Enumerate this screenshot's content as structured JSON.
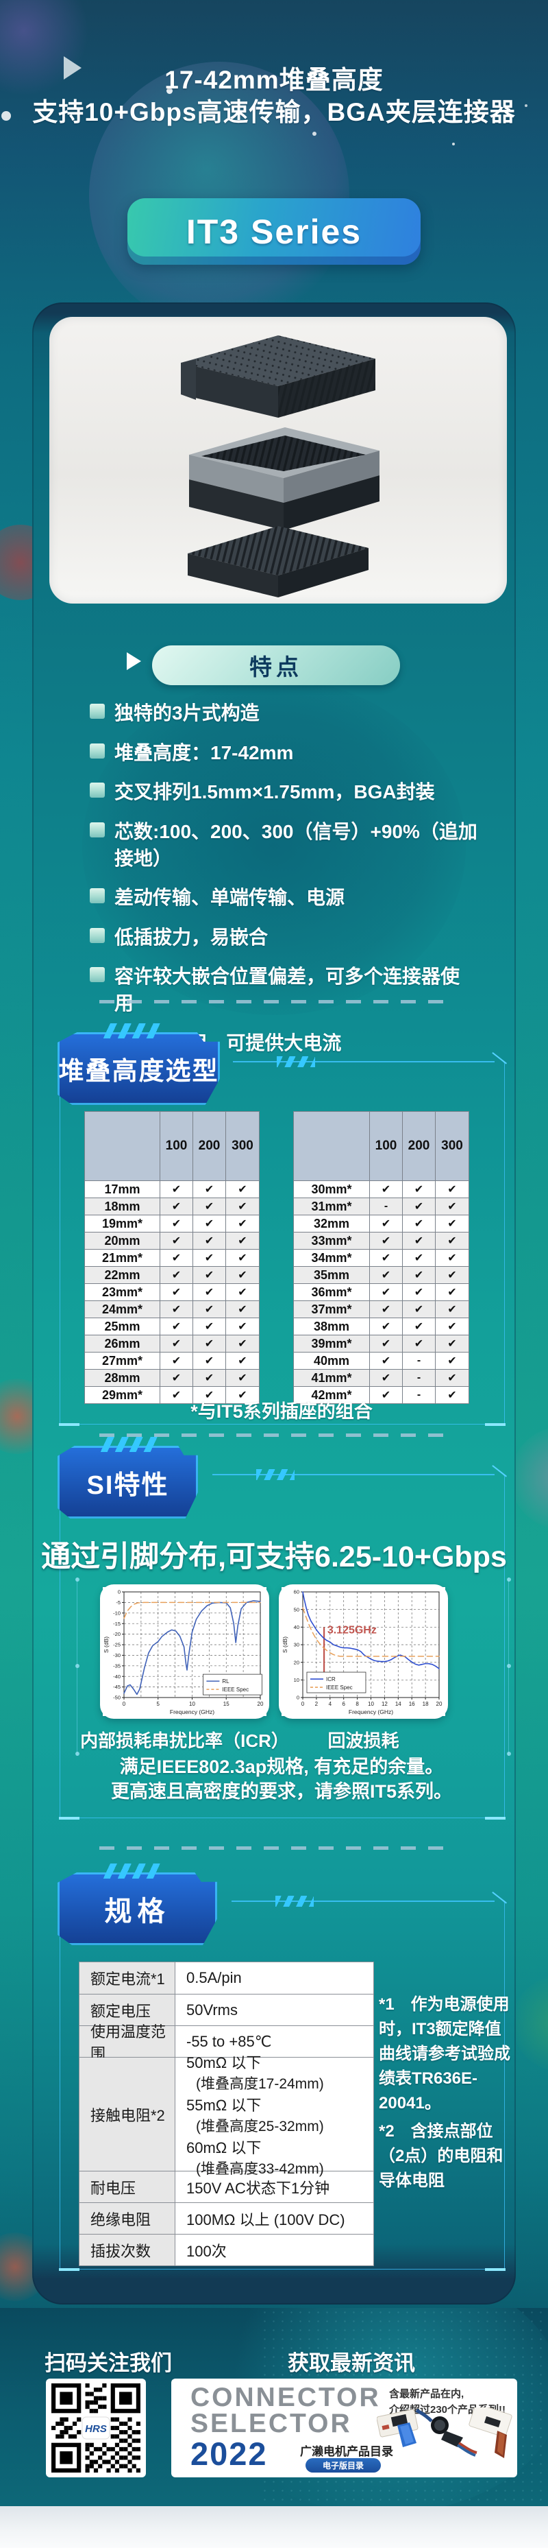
{
  "header": {
    "title_line1": "17-42mm堆叠高度",
    "title_line2": "支持10+Gbps高速传输，BGA夹层连接器",
    "series_badge": "IT3 Series"
  },
  "features": {
    "badge": "特点",
    "items": [
      "独特的3片式构造",
      "堆叠高度：17-42mm",
      "交叉排列1.5mm×1.75mm，BGA封装",
      "芯数:100、200、300（信号）+90%（追加接地）",
      "差动传输、单端传输、电源",
      "低插拔力，易嵌合",
      "容许较大嵌合位置偏差，可多个连接器使用",
      "与IT-P并用，可提供大电流"
    ]
  },
  "stack_height": {
    "badge": "堆叠高度选型",
    "col_headers": [
      "100",
      "200",
      "300"
    ],
    "left_rows": [
      {
        "label": "17mm",
        "cells": [
          "✔",
          "✔",
          "✔"
        ]
      },
      {
        "label": "18mm",
        "cells": [
          "✔",
          "✔",
          "✔"
        ]
      },
      {
        "label": "19mm*",
        "cells": [
          "✔",
          "✔",
          "✔"
        ]
      },
      {
        "label": "20mm",
        "cells": [
          "✔",
          "✔",
          "✔"
        ]
      },
      {
        "label": "21mm*",
        "cells": [
          "✔",
          "✔",
          "✔"
        ]
      },
      {
        "label": "22mm",
        "cells": [
          "✔",
          "✔",
          "✔"
        ]
      },
      {
        "label": "23mm*",
        "cells": [
          "✔",
          "✔",
          "✔"
        ]
      },
      {
        "label": "24mm*",
        "cells": [
          "✔",
          "✔",
          "✔"
        ]
      },
      {
        "label": "25mm",
        "cells": [
          "✔",
          "✔",
          "✔"
        ]
      },
      {
        "label": "26mm",
        "cells": [
          "✔",
          "✔",
          "✔"
        ]
      },
      {
        "label": "27mm*",
        "cells": [
          "✔",
          "✔",
          "✔"
        ]
      },
      {
        "label": "28mm",
        "cells": [
          "✔",
          "✔",
          "✔"
        ]
      },
      {
        "label": "29mm*",
        "cells": [
          "✔",
          "✔",
          "✔"
        ]
      }
    ],
    "right_rows": [
      {
        "label": "30mm*",
        "cells": [
          "✔",
          "✔",
          "✔"
        ]
      },
      {
        "label": "31mm*",
        "cells": [
          "-",
          "✔",
          "✔"
        ]
      },
      {
        "label": "32mm",
        "cells": [
          "✔",
          "✔",
          "✔"
        ]
      },
      {
        "label": "33mm*",
        "cells": [
          "✔",
          "✔",
          "✔"
        ]
      },
      {
        "label": "34mm*",
        "cells": [
          "✔",
          "✔",
          "✔"
        ]
      },
      {
        "label": "35mm",
        "cells": [
          "✔",
          "✔",
          "✔"
        ]
      },
      {
        "label": "36mm*",
        "cells": [
          "✔",
          "✔",
          "✔"
        ]
      },
      {
        "label": "37mm*",
        "cells": [
          "✔",
          "✔",
          "✔"
        ]
      },
      {
        "label": "38mm",
        "cells": [
          "✔",
          "✔",
          "✔"
        ]
      },
      {
        "label": "39mm*",
        "cells": [
          "✔",
          "✔",
          "✔"
        ]
      },
      {
        "label": "40mm",
        "cells": [
          "✔",
          "-",
          "✔"
        ]
      },
      {
        "label": "41mm*",
        "cells": [
          "✔",
          "-",
          "✔"
        ]
      },
      {
        "label": "42mm*",
        "cells": [
          "✔",
          "-",
          "✔"
        ]
      }
    ],
    "footnote": "*与IT5系列插座的组合"
  },
  "si": {
    "badge": "SI特性",
    "headline": "通过引脚分布,可支持6.25-10+Gbps",
    "captions": [
      "内部损耗串扰比率（ICR）",
      "回波损耗"
    ],
    "notes": [
      "满足IEEE802.3ap规格, 有充足的余量。",
      "更高速且高密度的要求，请参照IT5系列。"
    ]
  },
  "chart_data": [
    {
      "type": "line",
      "title": "内部损耗串扰比率（ICR）",
      "xlabel": "Frequency (GHz)",
      "ylabel": "S (dB)",
      "xlim": [
        0,
        20
      ],
      "ylim": [
        -50,
        0
      ],
      "xticks": [
        0,
        5,
        10,
        15,
        20
      ],
      "xgrid": [
        2.5,
        5,
        7.5,
        10,
        12.5,
        15,
        17.5
      ],
      "yticks": [
        0,
        -5,
        -10,
        -15,
        -20,
        -25,
        -30,
        -35,
        -40,
        -45,
        -50
      ],
      "grid": true,
      "legend": {
        "fx": 0.58,
        "fy": 0.78
      },
      "series": [
        {
          "name": "RL",
          "color": "#4062b8",
          "width": 1.6,
          "points": [
            [
              0,
              -48
            ],
            [
              0.5,
              -44.5
            ],
            [
              0.9,
              -44
            ],
            [
              1.4,
              -46
            ],
            [
              1.9,
              -48.5
            ],
            [
              2.3,
              -46
            ],
            [
              3,
              -36
            ],
            [
              3.6,
              -29
            ],
            [
              4.2,
              -25.5
            ],
            [
              5,
              -23.5
            ],
            [
              5.6,
              -21
            ],
            [
              6.4,
              -19
            ],
            [
              7,
              -18
            ],
            [
              7.6,
              -18.5
            ],
            [
              8.2,
              -21
            ],
            [
              8.8,
              -26
            ],
            [
              9.1,
              -34
            ],
            [
              9.25,
              -37
            ],
            [
              9.5,
              -30
            ],
            [
              10,
              -19
            ],
            [
              10.6,
              -13
            ],
            [
              11.4,
              -9
            ],
            [
              12.2,
              -6.5
            ],
            [
              13,
              -5.3
            ],
            [
              14,
              -5
            ],
            [
              15,
              -5.2
            ],
            [
              15.6,
              -7.5
            ],
            [
              16.1,
              -15
            ],
            [
              16.4,
              -24
            ],
            [
              16.7,
              -16
            ],
            [
              17.2,
              -8
            ],
            [
              18,
              -5
            ],
            [
              19,
              -4.2
            ],
            [
              20,
              -4.5
            ]
          ]
        },
        {
          "name": "IEEE Spec",
          "color": "#e8a05a",
          "width": 1.5,
          "dash": "8 5",
          "points": [
            [
              0,
              -12.5
            ],
            [
              0.5,
              -9
            ],
            [
              1,
              -7
            ],
            [
              1.5,
              -5.8
            ],
            [
              2,
              -5.2
            ],
            [
              3,
              -5
            ],
            [
              20,
              -5
            ]
          ]
        }
      ]
    },
    {
      "type": "line",
      "title": "回波损耗",
      "xlabel": "Frequency (GHz)",
      "ylabel": "S (dB)",
      "xlim": [
        0,
        20
      ],
      "ylim": [
        0,
        60
      ],
      "xticks": [
        0,
        2,
        4,
        6,
        8,
        10,
        12,
        14,
        16,
        18,
        20
      ],
      "xgrid": [
        2,
        4,
        6,
        8,
        10,
        12,
        14,
        16,
        18
      ],
      "yticks": [
        0,
        10,
        20,
        30,
        40,
        50,
        60
      ],
      "grid": true,
      "legend": {
        "fx": 0.03,
        "fy": 0.76
      },
      "annotation": {
        "x": 3.125,
        "y0": 10.5,
        "y1": 40,
        "label": "3.125GHz",
        "lx": 3.6,
        "ly": 36.5,
        "color": "#c0544e",
        "size": 16
      },
      "series": [
        {
          "name": "ICR",
          "color": "#2f4fd0",
          "width": 1.6,
          "points": [
            [
              0,
              60
            ],
            [
              0.2,
              56
            ],
            [
              0.5,
              51
            ],
            [
              0.8,
              47
            ],
            [
              1.2,
              43.5
            ],
            [
              1.6,
              41
            ],
            [
              2,
              38.5
            ],
            [
              2.5,
              36
            ],
            [
              3,
              34
            ],
            [
              3.5,
              32.5
            ],
            [
              4,
              31.5
            ],
            [
              4.5,
              30
            ],
            [
              5,
              29.3
            ],
            [
              5.5,
              28.6
            ],
            [
              6,
              28.2
            ],
            [
              6.5,
              28.2
            ],
            [
              7,
              28
            ],
            [
              7.5,
              27.6
            ],
            [
              8,
              27.2
            ],
            [
              8.5,
              26.2
            ],
            [
              9,
              24.2
            ],
            [
              9.5,
              23
            ],
            [
              10,
              21.8
            ],
            [
              10.5,
              21
            ],
            [
              11,
              20.6
            ],
            [
              11.5,
              20.4
            ],
            [
              12,
              20.4
            ],
            [
              12.5,
              20.8
            ],
            [
              13,
              21.6
            ],
            [
              13.5,
              22.8
            ],
            [
              14,
              23.8
            ],
            [
              14.3,
              24.1
            ],
            [
              15,
              23.2
            ],
            [
              15.5,
              21.6
            ],
            [
              16,
              20.2
            ],
            [
              16.5,
              19
            ],
            [
              17,
              18.4
            ],
            [
              17.5,
              18.8
            ],
            [
              18,
              19.3
            ],
            [
              18.5,
              19.2
            ],
            [
              19,
              18.8
            ],
            [
              19.5,
              17.8
            ],
            [
              20,
              16.4
            ]
          ]
        },
        {
          "name": "IEEE Spec",
          "color": "#e8a05a",
          "width": 1.5,
          "dash": "8 5",
          "points": [
            [
              0,
              51
            ],
            [
              0.5,
              45.5
            ],
            [
              1,
              40.5
            ],
            [
              1.5,
              36.5
            ],
            [
              2,
              33
            ],
            [
              2.5,
              30.5
            ],
            [
              3,
              28.5
            ],
            [
              3.5,
              26.8
            ],
            [
              4,
              25.4
            ],
            [
              4.5,
              24.4
            ],
            [
              5,
              23.7
            ],
            [
              5.5,
              23.4
            ],
            [
              6,
              23.4
            ],
            [
              20,
              23.4
            ]
          ]
        }
      ]
    }
  ],
  "specs": {
    "badge": "规格",
    "rows": [
      {
        "label": "额定电流*1",
        "value": [
          "0.5A/pin"
        ],
        "h": 47
      },
      {
        "label": "额定电压",
        "value": [
          "50Vrms"
        ],
        "h": 46
      },
      {
        "label": "使用温度范围",
        "value": [
          "-55 to +85℃"
        ],
        "h": 46
      },
      {
        "label": "接触电阻*2",
        "value": [
          "50mΩ 以下",
          "(堆叠高度17-24mm)",
          "55mΩ 以下",
          "(堆叠高度25-32mm)",
          "60mΩ 以下",
          "(堆叠高度33-42mm)"
        ],
        "h": 166
      },
      {
        "label": "耐电压",
        "value": [
          "150V AC状态下1分钟"
        ],
        "h": 46
      },
      {
        "label": "绝缘电阻",
        "value": [
          "100MΩ 以上 (100V DC)"
        ],
        "h": 46
      },
      {
        "label": "插拔次数",
        "value": [
          "100次"
        ],
        "h": 46
      }
    ],
    "notes": [
      "*1　作为电源使用时，IT3额定降值曲线请参考试验成绩表TR636E-20041。",
      "*2　含接点部位（2点）的电阻和导体电阻"
    ]
  },
  "footer": {
    "qr_title": "扫码关注我们",
    "news_title": "获取最新资讯",
    "qr_logo": "HRS",
    "banner": {
      "line1": "CONNECTOR",
      "line2": "SELECTOR",
      "year": "2022",
      "catalog": "广濑电机产品目录",
      "ebook": "电子版目录",
      "desc1": "含最新产品在内,",
      "desc2": "介绍超过230个产品系列!!"
    }
  },
  "colors": {
    "accent_cyan": "#35c8ff",
    "badge_blue": "#1b55b4",
    "pill_mint": "#b8e6dd",
    "series_teal": "#38c9ad",
    "series_blue": "#2f80df",
    "annotation_red": "#c0544e",
    "table_header": "#b9c6d6"
  }
}
